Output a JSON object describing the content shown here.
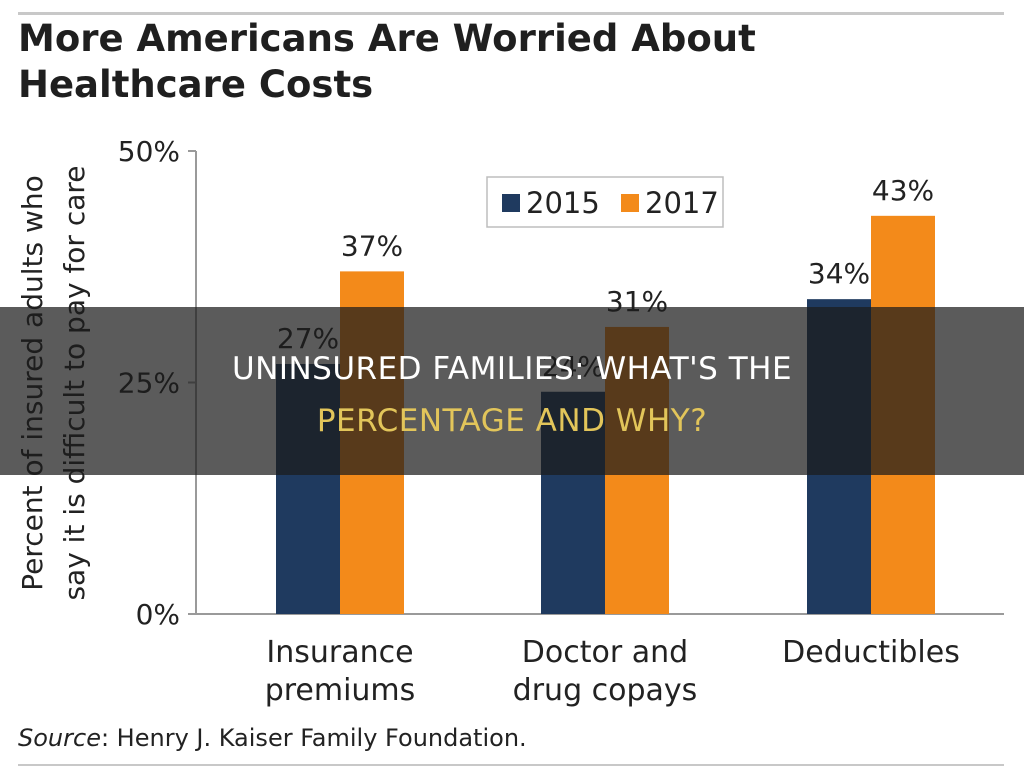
{
  "header": {
    "title_line1": "More Americans Are Worried About",
    "title_line2": "Healthcare Costs"
  },
  "source": {
    "label": "Source",
    "text": ": Henry J. Kaiser Family Foundation."
  },
  "banner": {
    "line1": "UNINSURED FAMILIES: WHAT'S THE",
    "line2": "PERCENTAGE AND WHY?"
  },
  "colors": {
    "series_2015": "#1f3a5f",
    "series_2017": "#f38a1a",
    "banner_line2": "#e2c55a"
  },
  "chart_data": {
    "type": "bar",
    "title": "More Americans Are Worried About Healthcare Costs",
    "ylabel_line1": "Percent of insured adults who",
    "ylabel_line2": "say it is difficult to pay for care",
    "ylim": [
      0,
      50
    ],
    "yticks": [
      {
        "value": 0,
        "label": "0%"
      },
      {
        "value": 25,
        "label": "25%"
      },
      {
        "value": 50,
        "label": "50%"
      }
    ],
    "grid": false,
    "legend": "top-center",
    "categories": [
      [
        "Insurance",
        "premiums"
      ],
      [
        "Doctor and",
        "drug copays"
      ],
      [
        "Deductibles"
      ]
    ],
    "series": [
      {
        "name": "2015",
        "color": "#1f3a5f",
        "values": [
          27,
          24,
          34
        ],
        "labels": [
          "27%",
          "24%",
          "34%"
        ]
      },
      {
        "name": "2017",
        "color": "#f38a1a",
        "values": [
          37,
          31,
          43
        ],
        "labels": [
          "37%",
          "31%",
          "43%"
        ]
      }
    ]
  }
}
